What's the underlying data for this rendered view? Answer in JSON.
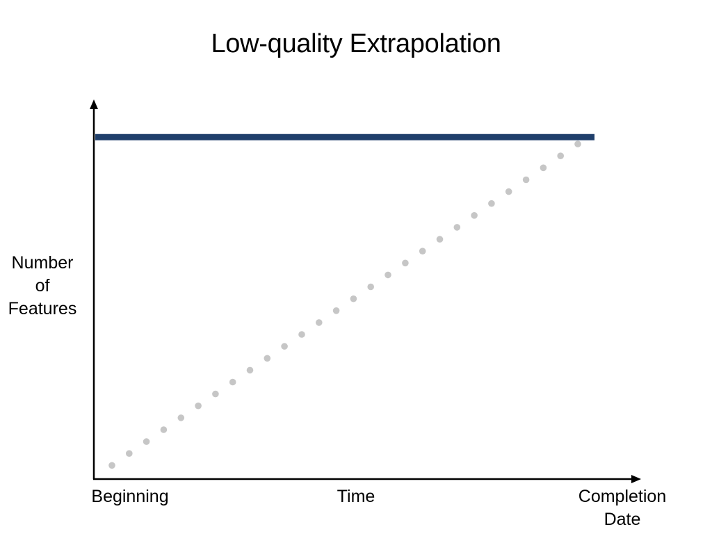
{
  "title": "Low-quality Extrapolation",
  "y_axis_label_lines": [
    "Number",
    "of",
    "Features"
  ],
  "x_axis_labels": {
    "start": "Beginning",
    "middle": "Time",
    "end_lines": [
      "Completion",
      "Date"
    ]
  },
  "colors": {
    "target_line": "#1f3f6b",
    "projection_dots": "#c6c6c6",
    "axes": "#000000"
  },
  "chart_data": {
    "type": "line",
    "series": [
      {
        "style": "solid",
        "x": [
          0,
          1
        ],
        "y": [
          1,
          1
        ]
      },
      {
        "style": "dotted",
        "x": [
          0,
          1
        ],
        "y": [
          0.04,
          0.98
        ]
      }
    ],
    "xlim": [
      0,
      1
    ],
    "ylim": [
      0,
      1.09
    ],
    "grid": false
  }
}
